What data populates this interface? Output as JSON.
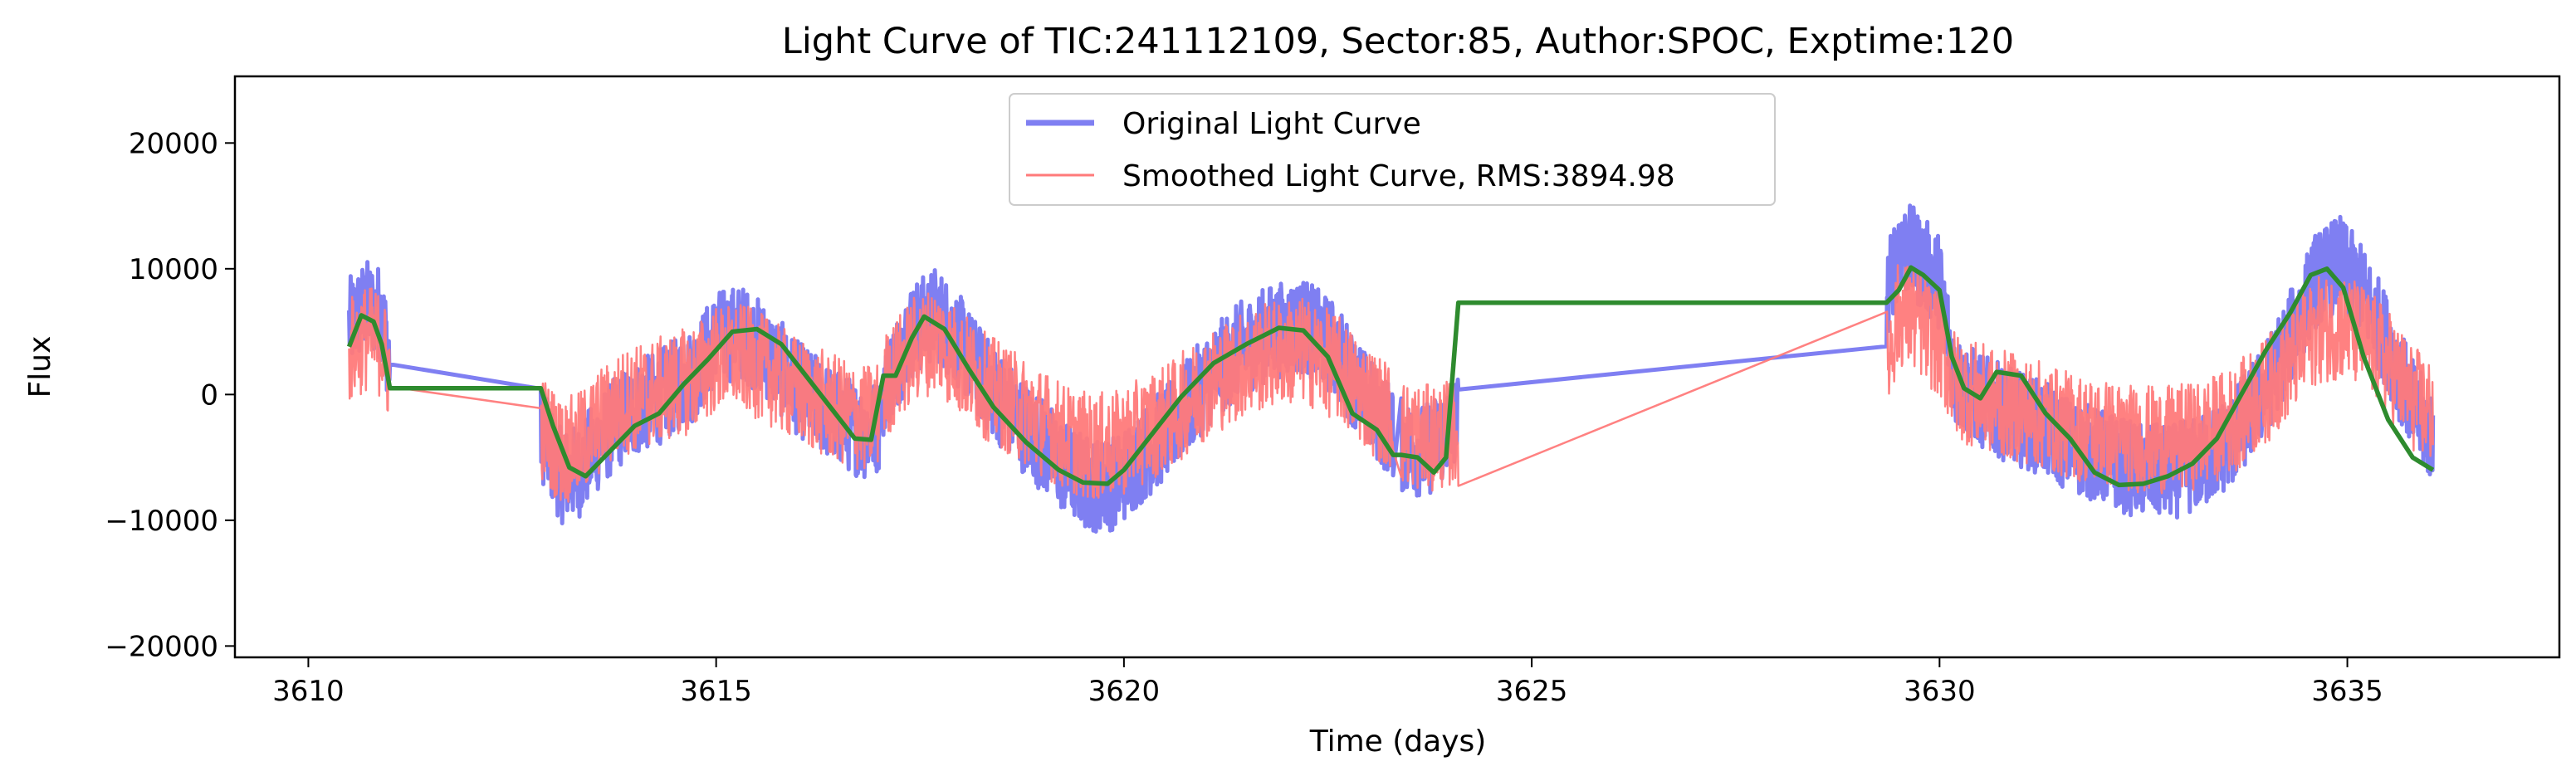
{
  "chart_data": {
    "type": "line",
    "title": "Light Curve of TIC:241112109, Sector:85, Author:SPOC, Exptime:120",
    "xlabel": "Time (days)",
    "ylabel": "Flux",
    "xlim": [
      3609.1,
      3637.6
    ],
    "ylim": [
      -20900,
      25300
    ],
    "x_ticks": [
      3610,
      3615,
      3620,
      3625,
      3630,
      3635
    ],
    "x_tick_labels": [
      "3610",
      "3615",
      "3620",
      "3625",
      "3630",
      "3635"
    ],
    "y_ticks": [
      -20000,
      -10000,
      0,
      10000,
      20000
    ],
    "y_tick_labels": [
      "−20000",
      "−10000",
      "0",
      "10000",
      "20000"
    ],
    "grid": false,
    "legend_position": "top-center",
    "segments": [
      [
        3610.5,
        3611.0
      ],
      [
        3612.85,
        3617.0
      ],
      [
        3617.05,
        3623.3
      ],
      [
        3623.4,
        3624.1
      ],
      [
        3629.35,
        3630.0
      ],
      [
        3630.0,
        3636.05
      ]
    ],
    "series": [
      {
        "name": "Original Light Curve",
        "color": "#7f7ff2",
        "line_width": "thick",
        "x": [
          3610.5,
          3610.7,
          3610.9,
          3611.0,
          3612.85,
          3613.1,
          3613.3,
          3613.6,
          3613.9,
          3614.3,
          3614.7,
          3615.0,
          3615.3,
          3615.6,
          3616.0,
          3616.4,
          3616.8,
          3617.0,
          3617.05,
          3617.4,
          3617.7,
          3618.0,
          3618.3,
          3618.7,
          3619.0,
          3619.3,
          3619.6,
          3619.9,
          3620.2,
          3620.6,
          3621.0,
          3621.4,
          3621.8,
          3622.2,
          3622.6,
          3623.0,
          3623.3,
          3623.4,
          3623.7,
          3624.1,
          3629.35,
          3629.5,
          3629.7,
          3630.0,
          3630.2,
          3630.5,
          3630.8,
          3631.2,
          3631.6,
          3632.0,
          3632.4,
          3632.8,
          3633.2,
          3633.6,
          3634.0,
          3634.3,
          3634.6,
          3634.9,
          3635.2,
          3635.5,
          3635.8,
          3636.05
        ],
        "y": [
          5500,
          7000,
          6500,
          2500,
          -3000,
          -6500,
          -6200,
          -3500,
          -1500,
          -200,
          1500,
          4500,
          5000,
          3500,
          500,
          -1500,
          -3000,
          -2500,
          500,
          5000,
          6500,
          4000,
          1000,
          -2000,
          -4000,
          -6000,
          -7200,
          -7000,
          -5000,
          -2500,
          1000,
          3500,
          5000,
          5500,
          3500,
          -800,
          -3000,
          -4000,
          -4500,
          -2000,
          7500,
          12000,
          11000,
          9000,
          1000,
          -500,
          -1500,
          -2500,
          -4000,
          -5000,
          -6000,
          -6200,
          -5500,
          -3500,
          500,
          4500,
          9000,
          10500,
          8000,
          4000,
          -1000,
          -3500
        ]
      },
      {
        "name": "Smoothed Light Curve, RMS:3894.98",
        "color": "#ff7a7a",
        "line_width": "thin",
        "x": [
          3610.5,
          3610.7,
          3610.9,
          3611.0,
          3612.85,
          3613.1,
          3613.3,
          3613.6,
          3613.9,
          3614.3,
          3614.7,
          3615.0,
          3615.3,
          3615.6,
          3616.0,
          3616.4,
          3616.8,
          3617.0,
          3617.05,
          3617.4,
          3617.7,
          3618.0,
          3618.3,
          3618.7,
          3619.0,
          3619.3,
          3619.6,
          3619.9,
          3620.2,
          3620.6,
          3621.0,
          3621.4,
          3621.8,
          3622.2,
          3622.6,
          3623.0,
          3623.3,
          3623.4,
          3623.7,
          3624.1,
          3629.35,
          3629.5,
          3629.7,
          3630.0,
          3630.2,
          3630.5,
          3630.8,
          3631.2,
          3631.6,
          3632.0,
          3632.4,
          3632.8,
          3633.2,
          3633.6,
          3634.0,
          3634.3,
          3634.6,
          3634.9,
          3635.2,
          3635.5,
          3635.8,
          3636.05
        ],
        "y": [
          3500,
          4500,
          4000,
          1500,
          -2500,
          -4500,
          -4200,
          -2000,
          -500,
          300,
          1200,
          2800,
          3000,
          2000,
          300,
          -1000,
          -2000,
          -1500,
          500,
          3500,
          4500,
          2500,
          700,
          -1000,
          -2200,
          -3500,
          -4200,
          -4000,
          -3000,
          -1500,
          700,
          2200,
          3200,
          3500,
          2200,
          -300,
          -2000,
          -3000,
          -3500,
          -3000,
          2500,
          6500,
          6000,
          4000,
          700,
          -200,
          -800,
          -1500,
          -2500,
          -3000,
          -3500,
          -3600,
          -3200,
          -2000,
          300,
          2500,
          5000,
          5500,
          4500,
          2500,
          -300,
          -1500
        ]
      },
      {
        "name": "",
        "color": "#2e8b2e",
        "line_width": "medium",
        "x": [
          3610.5,
          3610.65,
          3610.8,
          3610.9,
          3611.0,
          3612.85,
          3613.0,
          3613.2,
          3613.4,
          3613.7,
          3614.0,
          3614.3,
          3614.6,
          3614.9,
          3615.2,
          3615.5,
          3615.8,
          3616.1,
          3616.4,
          3616.7,
          3616.9,
          3617.05,
          3617.2,
          3617.4,
          3617.55,
          3617.8,
          3618.1,
          3618.4,
          3618.8,
          3619.2,
          3619.5,
          3619.8,
          3620.0,
          3620.3,
          3620.7,
          3621.1,
          3621.5,
          3621.9,
          3622.2,
          3622.5,
          3622.8,
          3623.1,
          3623.3,
          3623.4,
          3623.6,
          3623.8,
          3623.95,
          3624.1,
          3629.35,
          3629.5,
          3629.65,
          3629.8,
          3630.0,
          3630.15,
          3630.3,
          3630.5,
          3630.7,
          3631.0,
          3631.3,
          3631.6,
          3631.9,
          3632.2,
          3632.5,
          3632.8,
          3633.1,
          3633.4,
          3633.7,
          3634.0,
          3634.3,
          3634.55,
          3634.75,
          3634.95,
          3635.2,
          3635.5,
          3635.8,
          3636.05
        ],
        "y": [
          3800,
          6300,
          5800,
          4000,
          500,
          500,
          -2500,
          -5800,
          -6500,
          -4500,
          -2500,
          -1500,
          800,
          2800,
          5000,
          5200,
          4000,
          1500,
          -1000,
          -3500,
          -3600,
          1500,
          1500,
          4500,
          6200,
          5200,
          2000,
          -1000,
          -3800,
          -6000,
          -7000,
          -7100,
          -6000,
          -3500,
          -200,
          2500,
          4000,
          5300,
          5100,
          3000,
          -1500,
          -2800,
          -4800,
          -4800,
          -5000,
          -6200,
          -5000,
          7300,
          7300,
          8300,
          10100,
          9500,
          8300,
          3000,
          500,
          -300,
          1800,
          1500,
          -1500,
          -3500,
          -6200,
          -7200,
          -7100,
          -6500,
          -5500,
          -3500,
          0,
          3500,
          6500,
          9500,
          10000,
          8500,
          3000,
          -2000,
          -5000,
          -6000
        ]
      }
    ]
  }
}
